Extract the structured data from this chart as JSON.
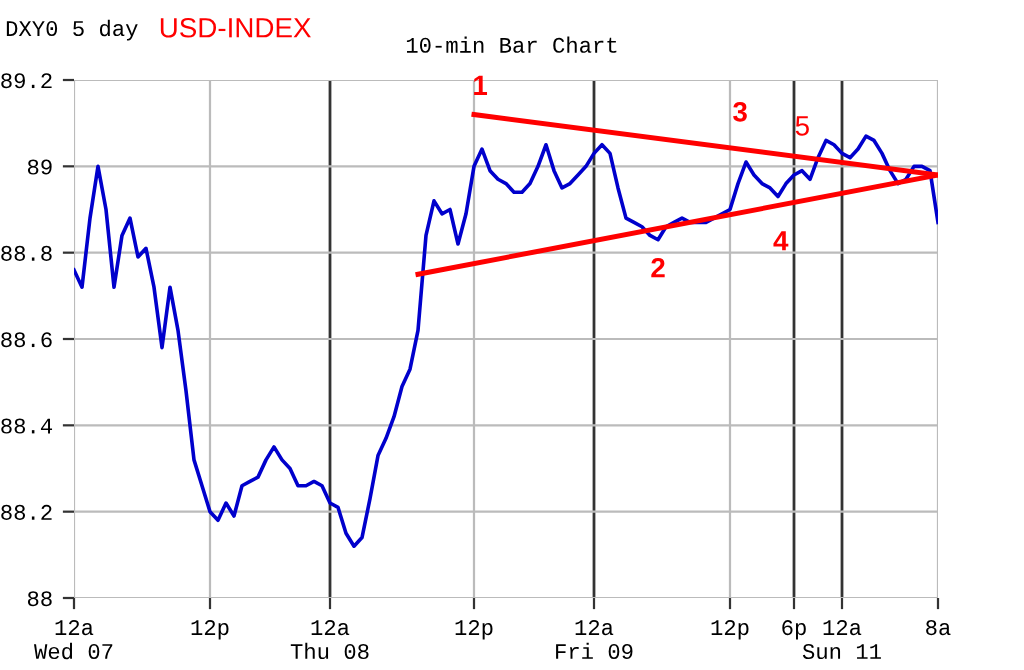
{
  "chart_data": {
    "type": "line",
    "title": "USD-INDEX",
    "subtitle": "10-min Bar Chart",
    "annotations": [
      "DXY0 5 day",
      "1",
      "2",
      "3",
      "4",
      "5"
    ],
    "categories": [
      "12a\nWed 07",
      null,
      null,
      null,
      null,
      null,
      null,
      null,
      null,
      null,
      null,
      null,
      null,
      null,
      null,
      null,
      null,
      "12p",
      null,
      null,
      null,
      null,
      null,
      null,
      null,
      null,
      null,
      null,
      null,
      null,
      null,
      null,
      "12a\nThu 08",
      null,
      null,
      null,
      null,
      null,
      null,
      null,
      null,
      null,
      null,
      null,
      null,
      null,
      null,
      null,
      null,
      null,
      "12p",
      null,
      null,
      null,
      null,
      null,
      null,
      null,
      null,
      null,
      null,
      null,
      null,
      null,
      null,
      "12a\nFri 09",
      null,
      null,
      null,
      null,
      null,
      null,
      null,
      null,
      null,
      null,
      null,
      null,
      null,
      null,
      null,
      null,
      "12p",
      null,
      null,
      null,
      null,
      null,
      null,
      null,
      "6p",
      null,
      null,
      null,
      null,
      null,
      "12a\nSun 11",
      null,
      null,
      null,
      null,
      null,
      null,
      null,
      null,
      null,
      null,
      null,
      "8a"
    ],
    "ylim": [
      88,
      89.2
    ],
    "yticks": [
      88,
      88.2,
      88.4,
      88.6,
      88.8,
      89,
      89.2
    ],
    "grid": true,
    "series": [
      {
        "color": "#0000cc",
        "values": [
          88.76,
          88.72,
          88.88,
          89.0,
          88.9,
          88.72,
          88.84,
          88.88,
          88.79,
          88.81,
          88.72,
          88.58,
          88.72,
          88.62,
          88.48,
          88.32,
          88.26,
          88.2,
          88.18,
          88.22,
          88.19,
          88.26,
          88.27,
          88.28,
          88.32,
          88.35,
          88.32,
          88.3,
          88.26,
          88.26,
          88.27,
          88.26,
          88.22,
          88.21,
          88.15,
          88.12,
          88.14,
          88.23,
          88.33,
          88.37,
          88.42,
          88.49,
          88.53,
          88.62,
          88.84,
          88.92,
          88.89,
          88.9,
          88.82,
          88.89,
          89.0,
          89.04,
          88.99,
          88.97,
          88.96,
          88.94,
          88.94,
          88.96,
          89.0,
          89.05,
          88.99,
          88.95,
          88.96,
          88.98,
          89.0,
          89.03,
          89.05,
          89.03,
          88.95,
          88.88,
          88.87,
          88.86,
          88.84,
          88.83,
          88.86,
          88.87,
          88.88,
          88.87,
          88.87,
          88.87,
          88.88,
          88.89,
          88.9,
          88.96,
          89.01,
          88.98,
          88.96,
          88.95,
          88.93,
          88.96,
          88.98,
          88.99,
          88.97,
          89.02,
          89.06,
          89.05,
          89.03,
          89.02,
          89.04,
          89.07,
          89.06,
          89.03,
          88.99,
          88.96,
          88.97,
          89.0,
          89.0,
          88.99,
          88.87
        ]
      },
      {
        "color": "#ff0000",
        "values": [
          null,
          null,
          null,
          null,
          null,
          null,
          null,
          null,
          null,
          null,
          null,
          null,
          null,
          null,
          null,
          null,
          null,
          null,
          null,
          null,
          null,
          null,
          null,
          null,
          null,
          null,
          null,
          null,
          null,
          null,
          null,
          null,
          null,
          null,
          null,
          null,
          null,
          null,
          null,
          null,
          null,
          null,
          null,
          null,
          null,
          null,
          null,
          null,
          null,
          null,
          89.12,
          null,
          null,
          null,
          null,
          null,
          null,
          null,
          null,
          null,
          null,
          null,
          null,
          null,
          null,
          null,
          null,
          null,
          null,
          null,
          null,
          null,
          null,
          null,
          null,
          null,
          null,
          null,
          null,
          null,
          null,
          null,
          null,
          null,
          null,
          null,
          null,
          null,
          null,
          null,
          null,
          null,
          null,
          null,
          null,
          null,
          null,
          null,
          null,
          null,
          null,
          null,
          null,
          null,
          null,
          null,
          null,
          null,
          88.98
        ]
      },
      {
        "color": "#ff0000",
        "values": [
          null,
          null,
          null,
          null,
          null,
          null,
          null,
          null,
          null,
          null,
          null,
          null,
          null,
          null,
          null,
          null,
          null,
          null,
          null,
          null,
          null,
          null,
          null,
          null,
          null,
          null,
          null,
          null,
          null,
          null,
          null,
          null,
          null,
          null,
          null,
          null,
          null,
          null,
          null,
          null,
          null,
          null,
          null,
          88.75,
          null,
          null,
          null,
          null,
          null,
          null,
          null,
          null,
          null,
          null,
          null,
          null,
          null,
          null,
          null,
          null,
          null,
          null,
          null,
          null,
          null,
          null,
          null,
          null,
          null,
          null,
          null,
          null,
          null,
          null,
          null,
          null,
          null,
          null,
          null,
          null,
          null,
          null,
          null,
          null,
          null,
          null,
          null,
          null,
          null,
          null,
          null,
          null,
          null,
          null,
          null,
          null,
          null,
          null,
          null,
          null,
          null,
          null,
          null,
          null,
          null,
          null,
          null,
          null,
          88.98
        ]
      }
    ]
  }
}
